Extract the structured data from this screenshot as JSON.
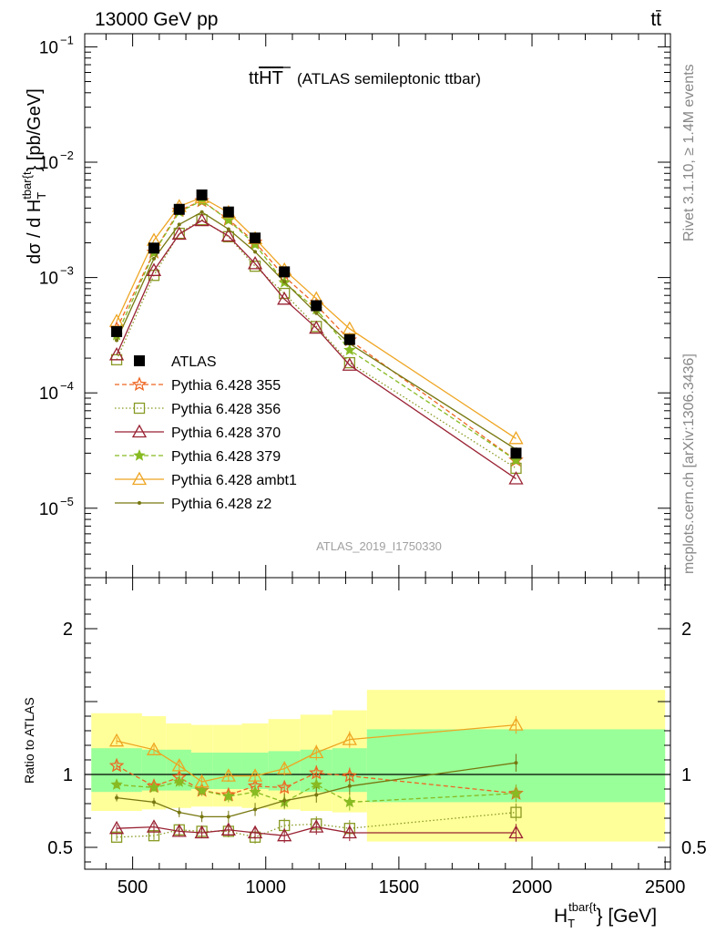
{
  "header": {
    "left": "13000 GeV pp",
    "right": "tt̄"
  },
  "plot_title": {
    "main": "ttHT",
    "sub": "(ATLAS semileptonic ttbar)"
  },
  "side_labels": {
    "rivet": "Rivet 3.1.10, ≥ 1.4M events",
    "mcplots": "mcplots.cern.ch [arXiv:1306.3436]"
  },
  "watermark": "ATLAS_2019_I1750330",
  "axes": {
    "ylabel_main": "dσ / d H",
    "ylabel_main_sub": "T",
    "ylabel_main_sup": "tbar{t",
    "ylabel_main_unit": "} [pb/GeV]",
    "ylabel_ratio": "Ratio to ATLAS",
    "xlabel": "H",
    "xlabel_sub": "T",
    "xlabel_sup": "tbar{t",
    "xlabel_unit": "} [GeV]",
    "main_ticks": [
      {
        "value": 0.1,
        "base": "10",
        "exp": "−1"
      },
      {
        "value": 0.01,
        "base": "10",
        "exp": "−2"
      },
      {
        "value": 0.001,
        "base": "10",
        "exp": "−3"
      },
      {
        "value": 0.0001,
        "base": "10",
        "exp": "−4"
      },
      {
        "value": 1e-05,
        "base": "10",
        "exp": "−5"
      }
    ],
    "ratio_ticks": [
      {
        "value": 0.5,
        "label": "0.5"
      },
      {
        "value": 1,
        "label": "1"
      },
      {
        "value": 2,
        "label": "2"
      }
    ],
    "x_ticks": [
      {
        "value": 500,
        "label": "500"
      },
      {
        "value": 1000,
        "label": "1000"
      },
      {
        "value": 1500,
        "label": "1500"
      },
      {
        "value": 2000,
        "label": "2000"
      },
      {
        "value": 2500,
        "label": "2500"
      }
    ]
  },
  "chart_data": {
    "type": "line",
    "x_scale": "linear",
    "y_scale_main": "log",
    "xlim": [
      320,
      2520
    ],
    "ylim_main": [
      2.5e-06,
      0.13
    ],
    "ylim_ratio": [
      0.35,
      2.35
    ],
    "x": [
      440,
      580,
      675,
      760,
      860,
      960,
      1070,
      1190,
      1315,
      1940
    ],
    "data": {
      "name": "ATLAS",
      "values": [
        0.00034,
        0.0018,
        0.0039,
        0.0052,
        0.0037,
        0.0022,
        0.00112,
        0.00057,
        0.00029,
        3e-05
      ],
      "color": "#000000"
    },
    "bands": {
      "edges": [
        345,
        535,
        625,
        720,
        800,
        910,
        1010,
        1130,
        1250,
        1380,
        2500
      ],
      "green_lo": [
        0.88,
        0.89,
        0.89,
        0.9,
        0.9,
        0.9,
        0.89,
        0.88,
        0.88,
        0.81
      ],
      "green_hi": [
        1.18,
        1.17,
        1.17,
        1.15,
        1.15,
        1.15,
        1.16,
        1.17,
        1.18,
        1.31
      ],
      "yellow_lo": [
        0.75,
        0.76,
        0.77,
        0.78,
        0.78,
        0.77,
        0.76,
        0.75,
        0.74,
        0.54
      ],
      "yellow_hi": [
        1.42,
        1.4,
        1.35,
        1.34,
        1.34,
        1.35,
        1.38,
        1.41,
        1.44,
        1.58
      ],
      "green_color": "#99ff99",
      "yellow_color": "#ffff99"
    },
    "series": [
      {
        "name": "Pythia 6.428 355",
        "color": "#ee6622",
        "dash": "5,3",
        "marker": "star-open",
        "ratio": [
          1.06,
          0.92,
          0.98,
          0.89,
          0.86,
          0.92,
          0.91,
          1.01,
          0.99,
          0.87
        ]
      },
      {
        "name": "Pythia 6.428 356",
        "color": "#889922",
        "dash": "1.5,2.5",
        "marker": "square-open",
        "ratio": [
          0.57,
          0.58,
          0.62,
          0.61,
          0.61,
          0.57,
          0.65,
          0.66,
          0.63,
          0.74
        ]
      },
      {
        "name": "Pythia 6.428 370",
        "color": "#992233",
        "dash": "",
        "marker": "triangle-open",
        "ratio": [
          0.63,
          0.64,
          0.61,
          0.6,
          0.62,
          0.6,
          0.58,
          0.64,
          0.6,
          0.6
        ]
      },
      {
        "name": "Pythia 6.428 379",
        "color": "#88bb22",
        "dash": "5,3",
        "marker": "star-filled",
        "ratio": [
          0.93,
          0.91,
          0.95,
          0.89,
          0.85,
          0.88,
          0.81,
          0.93,
          0.81,
          0.87
        ]
      },
      {
        "name": "Pythia 6.428 ambt1",
        "color": "#eea522",
        "dash": "",
        "marker": "triangle-open",
        "ratio": [
          1.23,
          1.17,
          1.06,
          0.95,
          0.99,
          0.99,
          1.04,
          1.15,
          1.24,
          1.34
        ]
      },
      {
        "name": "Pythia 6.428 z2",
        "color": "#777711",
        "dash": "",
        "marker": "dot",
        "ratio": [
          0.84,
          0.81,
          0.74,
          0.71,
          0.71,
          0.76,
          0.82,
          0.86,
          0.92,
          1.08
        ]
      }
    ]
  }
}
